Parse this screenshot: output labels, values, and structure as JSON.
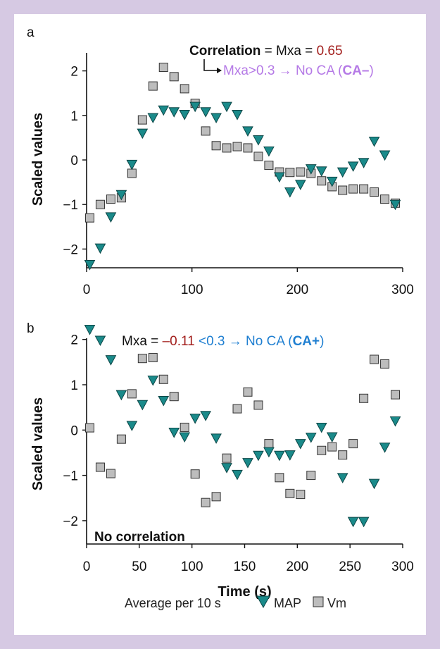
{
  "colors": {
    "frame": "#d6c9e3",
    "map": "#1a8a8a",
    "map_stroke": "#0d4747",
    "vm": "#bdbdbd",
    "vm_stroke": "#333333",
    "red": "#a3201e",
    "purple": "#b57ae6",
    "blue": "#1f7fd1",
    "dark": "#111111"
  },
  "annotations": {
    "a": {
      "line1_bold": "Correlation",
      "line1_mid": " = Mxa = ",
      "line1_value": "0.65",
      "line2_pre": "Mxa>0.3 → No CA (",
      "line2_bold": "CA–",
      "line2_post": ")"
    },
    "b": {
      "pre": "Mxa = ",
      "value": "–0.11",
      "mid": " <0.3 → No CA (",
      "bold": "CA+",
      "post": ")",
      "no_corr": "No correlation"
    }
  },
  "legend": {
    "prefix": "Average per 10 s",
    "map": "MAP",
    "vm": "Vm"
  },
  "chart_data": [
    {
      "panel": "a",
      "type": "scatter",
      "ylabel": "Scaled values",
      "xlabel": "",
      "xlim": [
        0,
        300
      ],
      "ylim": [
        -2.5,
        2.5
      ],
      "xticks": [
        "0",
        "100",
        "200",
        "300"
      ],
      "yticks": [
        "2",
        "1",
        "0",
        "−1",
        "−2"
      ],
      "ytick_values": [
        2,
        1,
        0,
        -1,
        -2
      ],
      "series": [
        {
          "name": "MAP",
          "marker": "triangle-down",
          "points": [
            [
              3,
              -2.35
            ],
            [
              13,
              -1.98
            ],
            [
              23,
              -1.28
            ],
            [
              33,
              -0.78
            ],
            [
              43,
              -0.1
            ],
            [
              53,
              0.6
            ],
            [
              63,
              0.95
            ],
            [
              73,
              1.12
            ],
            [
              83,
              1.08
            ],
            [
              93,
              1.02
            ],
            [
              103,
              1.2
            ],
            [
              113,
              1.08
            ],
            [
              123,
              0.95
            ],
            [
              133,
              1.2
            ],
            [
              143,
              1.02
            ],
            [
              153,
              0.65
            ],
            [
              163,
              0.45
            ],
            [
              173,
              0.2
            ],
            [
              183,
              -0.38
            ],
            [
              193,
              -0.72
            ],
            [
              203,
              -0.55
            ],
            [
              213,
              -0.2
            ],
            [
              223,
              -0.25
            ],
            [
              233,
              -0.48
            ],
            [
              243,
              -0.27
            ],
            [
              253,
              -0.14
            ],
            [
              263,
              -0.06
            ],
            [
              273,
              0.42
            ],
            [
              283,
              0.11
            ],
            [
              293,
              -1.0
            ]
          ]
        },
        {
          "name": "Vm",
          "marker": "square",
          "points": [
            [
              3,
              -1.3
            ],
            [
              13,
              -1.0
            ],
            [
              23,
              -0.88
            ],
            [
              33,
              -0.85
            ],
            [
              43,
              -0.3
            ],
            [
              53,
              0.9
            ],
            [
              63,
              1.66
            ],
            [
              73,
              2.08
            ],
            [
              83,
              1.87
            ],
            [
              93,
              1.6
            ],
            [
              103,
              1.27
            ],
            [
              113,
              0.65
            ],
            [
              123,
              0.32
            ],
            [
              133,
              0.27
            ],
            [
              143,
              0.3
            ],
            [
              153,
              0.27
            ],
            [
              163,
              0.08
            ],
            [
              173,
              -0.12
            ],
            [
              183,
              -0.27
            ],
            [
              193,
              -0.28
            ],
            [
              203,
              -0.27
            ],
            [
              213,
              -0.3
            ],
            [
              223,
              -0.47
            ],
            [
              233,
              -0.6
            ],
            [
              243,
              -0.68
            ],
            [
              253,
              -0.65
            ],
            [
              263,
              -0.65
            ],
            [
              273,
              -0.72
            ],
            [
              283,
              -0.88
            ],
            [
              293,
              -0.97
            ]
          ]
        }
      ]
    },
    {
      "panel": "b",
      "type": "scatter",
      "ylabel": "Scaled values",
      "xlabel": "Time (s)",
      "xlim": [
        0,
        300
      ],
      "ylim": [
        -2.1,
        2.35
      ],
      "xticks": [
        "0",
        "50",
        "100",
        "150",
        "200",
        "250",
        "300"
      ],
      "yticks": [
        "2",
        "1",
        "0",
        "−1",
        "−2"
      ],
      "ytick_values": [
        2,
        1,
        0,
        -1,
        -2
      ],
      "series": [
        {
          "name": "MAP",
          "marker": "triangle-down",
          "points": [
            [
              3,
              2.22
            ],
            [
              13,
              1.98
            ],
            [
              23,
              1.55
            ],
            [
              33,
              0.78
            ],
            [
              43,
              0.1
            ],
            [
              53,
              0.56
            ],
            [
              63,
              1.1
            ],
            [
              73,
              0.65
            ],
            [
              83,
              -0.05
            ],
            [
              93,
              -0.15
            ],
            [
              103,
              0.26
            ],
            [
              113,
              0.32
            ],
            [
              123,
              -0.18
            ],
            [
              133,
              -0.83
            ],
            [
              143,
              -0.98
            ],
            [
              153,
              -0.72
            ],
            [
              163,
              -0.56
            ],
            [
              173,
              -0.48
            ],
            [
              183,
              -0.56
            ],
            [
              193,
              -0.55
            ],
            [
              203,
              -0.3
            ],
            [
              213,
              -0.16
            ],
            [
              223,
              0.06
            ],
            [
              233,
              -0.15
            ],
            [
              243,
              -1.05
            ],
            [
              253,
              -2.02
            ],
            [
              263,
              -2.02
            ],
            [
              273,
              -1.18
            ],
            [
              283,
              -0.38
            ],
            [
              293,
              0.2
            ]
          ]
        },
        {
          "name": "Vm",
          "marker": "square",
          "points": [
            [
              3,
              0.05
            ],
            [
              13,
              -0.82
            ],
            [
              23,
              -0.96
            ],
            [
              33,
              -0.2
            ],
            [
              43,
              0.8
            ],
            [
              53,
              1.58
            ],
            [
              63,
              1.6
            ],
            [
              73,
              1.12
            ],
            [
              83,
              0.74
            ],
            [
              93,
              0.06
            ],
            [
              103,
              -0.97
            ],
            [
              113,
              -1.6
            ],
            [
              123,
              -1.47
            ],
            [
              133,
              -0.62
            ],
            [
              143,
              0.47
            ],
            [
              153,
              0.84
            ],
            [
              163,
              0.55
            ],
            [
              173,
              -0.3
            ],
            [
              183,
              -1.05
            ],
            [
              193,
              -1.4
            ],
            [
              203,
              -1.42
            ],
            [
              213,
              -1.0
            ],
            [
              223,
              -0.45
            ],
            [
              233,
              -0.37
            ],
            [
              243,
              -0.55
            ],
            [
              253,
              -0.3
            ],
            [
              263,
              0.7
            ],
            [
              273,
              1.56
            ],
            [
              283,
              1.46
            ],
            [
              293,
              0.78
            ]
          ]
        }
      ]
    }
  ]
}
